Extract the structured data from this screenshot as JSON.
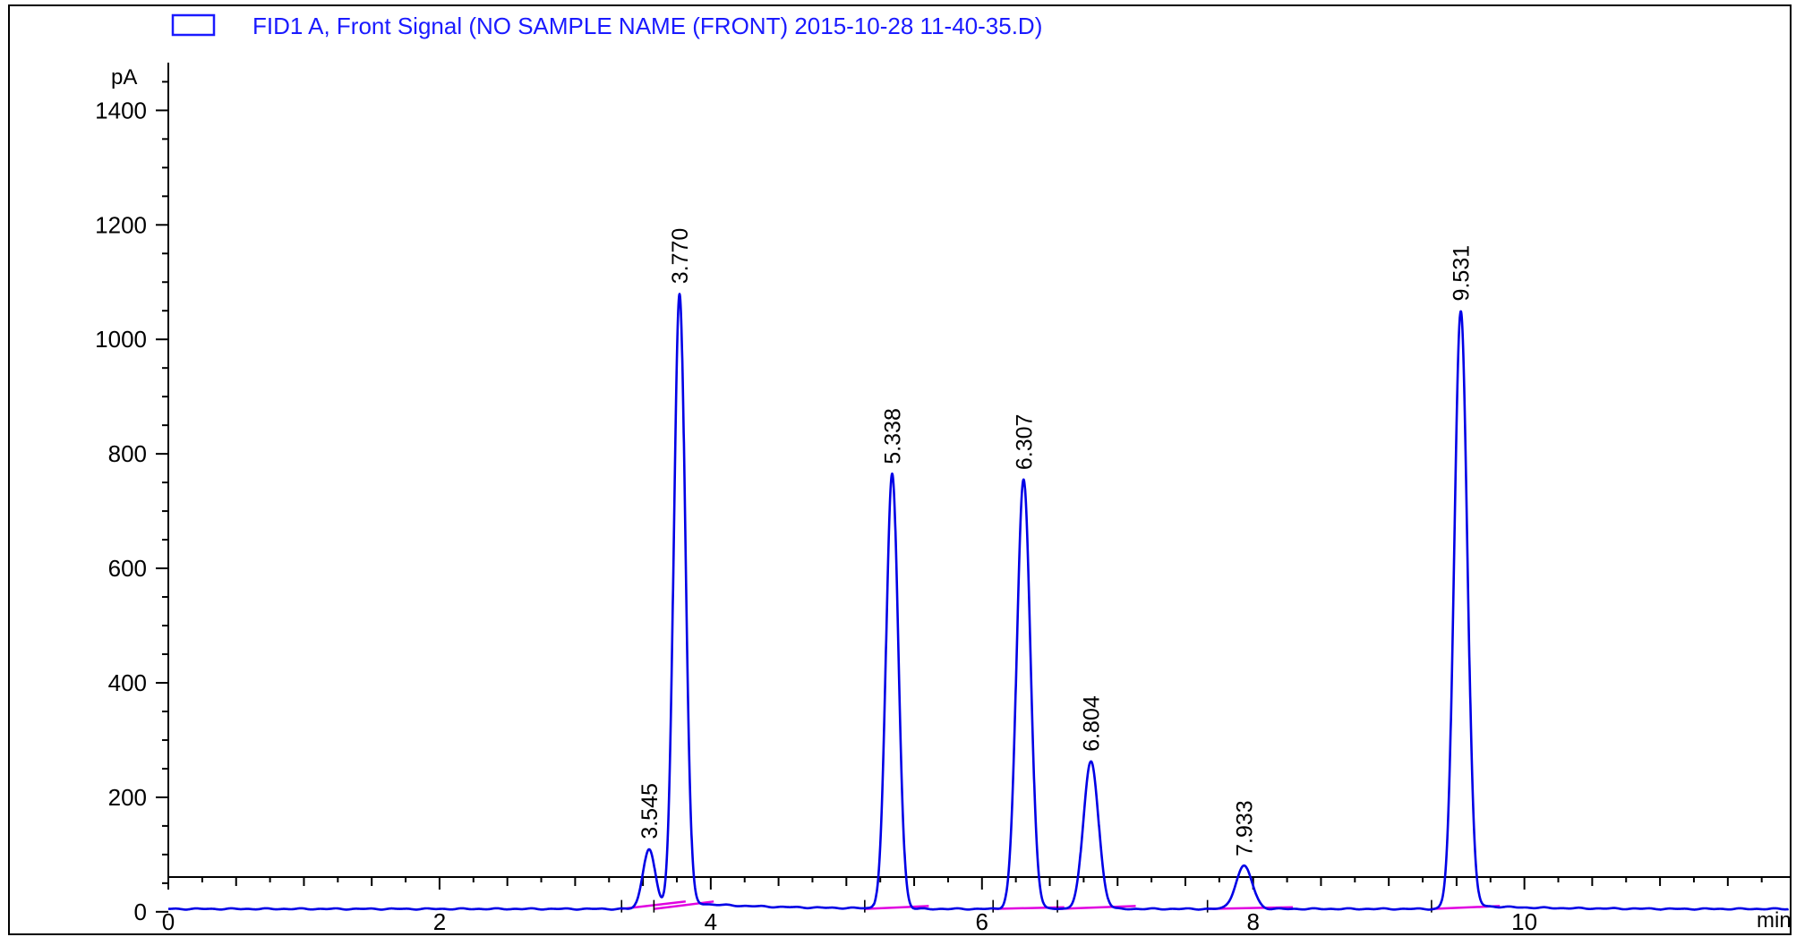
{
  "colors": {
    "signal": "#0000e6",
    "baseline": "#e000e0",
    "axis": "#000000",
    "frame": "#000000",
    "background": "#ffffff"
  },
  "chart_data": {
    "type": "line",
    "legend": {
      "label": "FID1 A, Front Signal (NO SAMPLE NAME (FRONT) 2015-10-28 11-40-35.D)",
      "placement": "top-left"
    },
    "ylabel": "pA",
    "xlabel": "min",
    "xlim": [
      0,
      11.95
    ],
    "ylim": [
      -80,
      1510
    ],
    "x_ticks": [
      0,
      2,
      4,
      6,
      8,
      10
    ],
    "y_ticks": [
      0,
      200,
      400,
      600,
      800,
      1000,
      1200,
      1400
    ],
    "grid": false,
    "baseline_level": 5,
    "peaks": [
      {
        "label": "3.545",
        "rt": 3.545,
        "height": 105,
        "width": 0.045,
        "baseline_end": 18
      },
      {
        "label": "3.770",
        "rt": 3.77,
        "height": 1075,
        "width": 0.042,
        "baseline_end": 18
      },
      {
        "label": "5.338",
        "rt": 5.338,
        "height": 760,
        "width": 0.045,
        "baseline_end": 10
      },
      {
        "label": "6.307",
        "rt": 6.307,
        "height": 750,
        "width": 0.05,
        "baseline_end": 8
      },
      {
        "label": "6.804",
        "rt": 6.804,
        "height": 258,
        "width": 0.055,
        "baseline_end": 10
      },
      {
        "label": "7.933",
        "rt": 7.933,
        "height": 75,
        "width": 0.06,
        "baseline_end": 8
      },
      {
        "label": "9.531",
        "rt": 9.531,
        "height": 1045,
        "width": 0.048,
        "baseline_end": 10
      }
    ]
  }
}
